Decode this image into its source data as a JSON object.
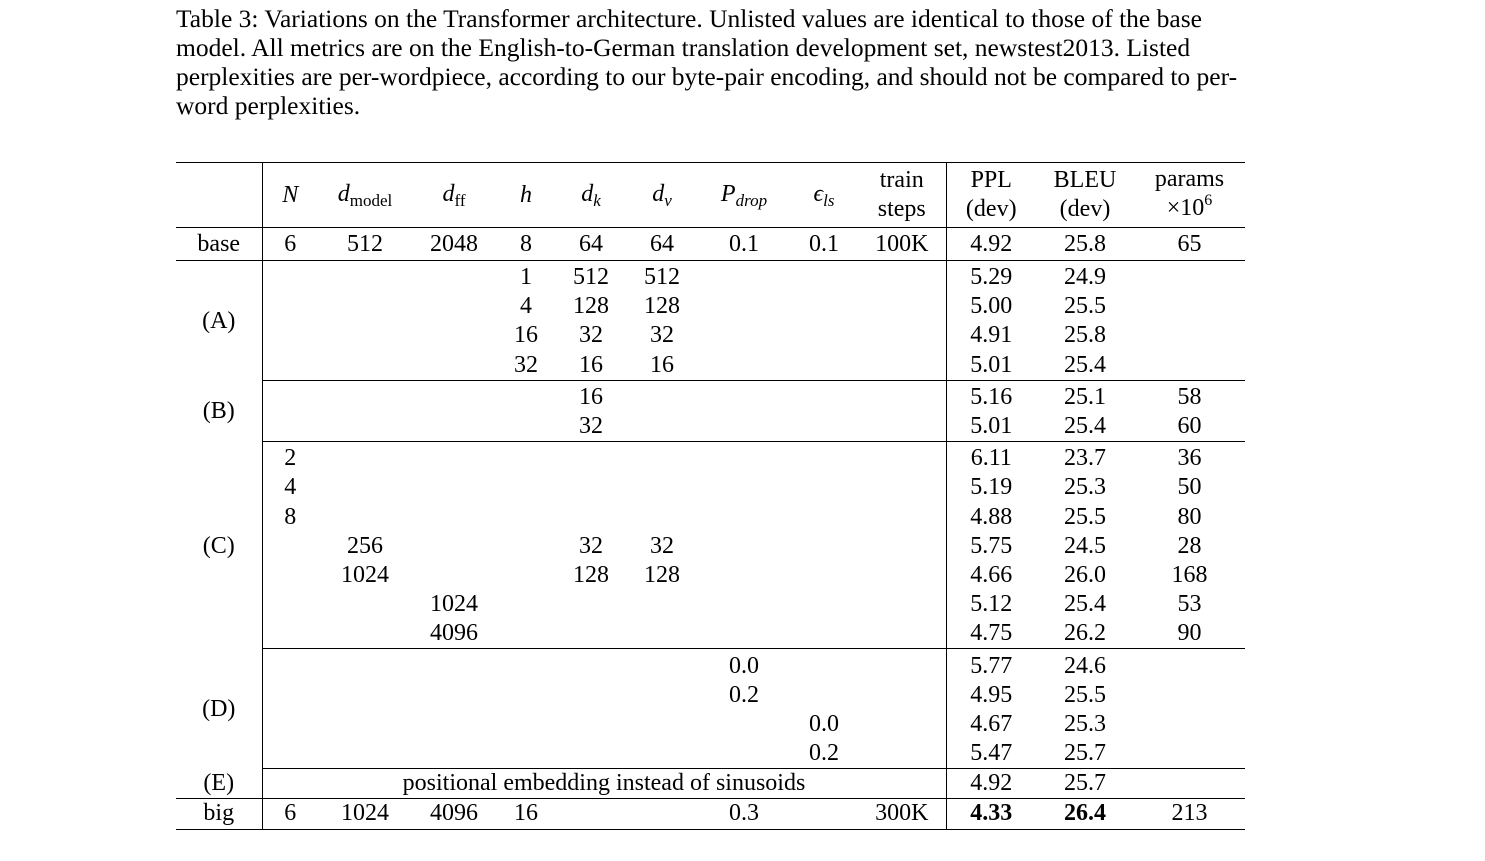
{
  "caption": "Table 3: Variations on the Transformer architecture. Unlisted values are identical to those of the base model. All metrics are on the English-to-German translation development set, newstest2013. Listed perplexities are per-wordpiece, according to our byte-pair encoding, and should not be compared to per-word perplexities.",
  "header": {
    "n": "N",
    "dmodel_main": "d",
    "dmodel_sub": "model",
    "dff_main": "d",
    "dff_sub": "ff",
    "h": "h",
    "dk_main": "d",
    "dk_sub": "k",
    "dv_main": "d",
    "dv_sub": "v",
    "pdrop_main": "P",
    "pdrop_sub": "drop",
    "els_main": "ϵ",
    "els_sub": "ls",
    "train_1": "train",
    "train_2": "steps",
    "ppl_1": "PPL",
    "ppl_2": "(dev)",
    "bleu_1": "BLEU",
    "bleu_2": "(dev)",
    "params_1": "params",
    "params_2": "×10",
    "params_sup": "6"
  },
  "groups": {
    "base": "base",
    "A": "(A)",
    "B": "(B)",
    "C": "(C)",
    "D": "(D)",
    "E": "(E)",
    "big": "big"
  },
  "rows": {
    "base": [
      "6",
      "512",
      "2048",
      "8",
      "64",
      "64",
      "0.1",
      "0.1",
      "100K",
      "4.92",
      "25.8",
      "65"
    ],
    "A": [
      [
        "",
        "",
        "",
        "1",
        "512",
        "512",
        "",
        "",
        "",
        "5.29",
        "24.9",
        ""
      ],
      [
        "",
        "",
        "",
        "4",
        "128",
        "128",
        "",
        "",
        "",
        "5.00",
        "25.5",
        ""
      ],
      [
        "",
        "",
        "",
        "16",
        "32",
        "32",
        "",
        "",
        "",
        "4.91",
        "25.8",
        ""
      ],
      [
        "",
        "",
        "",
        "32",
        "16",
        "16",
        "",
        "",
        "",
        "5.01",
        "25.4",
        ""
      ]
    ],
    "B": [
      [
        "",
        "",
        "",
        "",
        "16",
        "",
        "",
        "",
        "",
        "5.16",
        "25.1",
        "58"
      ],
      [
        "",
        "",
        "",
        "",
        "32",
        "",
        "",
        "",
        "",
        "5.01",
        "25.4",
        "60"
      ]
    ],
    "C": [
      [
        "2",
        "",
        "",
        "",
        "",
        "",
        "",
        "",
        "",
        "6.11",
        "23.7",
        "36"
      ],
      [
        "4",
        "",
        "",
        "",
        "",
        "",
        "",
        "",
        "",
        "5.19",
        "25.3",
        "50"
      ],
      [
        "8",
        "",
        "",
        "",
        "",
        "",
        "",
        "",
        "",
        "4.88",
        "25.5",
        "80"
      ],
      [
        "",
        "256",
        "",
        "",
        "32",
        "32",
        "",
        "",
        "",
        "5.75",
        "24.5",
        "28"
      ],
      [
        "",
        "1024",
        "",
        "",
        "128",
        "128",
        "",
        "",
        "",
        "4.66",
        "26.0",
        "168"
      ],
      [
        "",
        "",
        "1024",
        "",
        "",
        "",
        "",
        "",
        "",
        "5.12",
        "25.4",
        "53"
      ],
      [
        "",
        "",
        "4096",
        "",
        "",
        "",
        "",
        "",
        "",
        "4.75",
        "26.2",
        "90"
      ]
    ],
    "D": [
      [
        "",
        "",
        "",
        "",
        "",
        "",
        "0.0",
        "",
        "",
        "5.77",
        "24.6",
        ""
      ],
      [
        "",
        "",
        "",
        "",
        "",
        "",
        "0.2",
        "",
        "",
        "4.95",
        "25.5",
        ""
      ],
      [
        "",
        "",
        "",
        "",
        "",
        "",
        "",
        "0.0",
        "",
        "4.67",
        "25.3",
        ""
      ],
      [
        "",
        "",
        "",
        "",
        "",
        "",
        "",
        "0.2",
        "",
        "5.47",
        "25.7",
        ""
      ]
    ],
    "E": {
      "text": "positional embedding instead of sinusoids",
      "ppl": "4.92",
      "bleu": "25.7",
      "params": ""
    },
    "big": [
      "6",
      "1024",
      "4096",
      "16",
      "",
      "",
      "0.3",
      "",
      "300K",
      "4.33",
      "26.4",
      "213"
    ]
  }
}
